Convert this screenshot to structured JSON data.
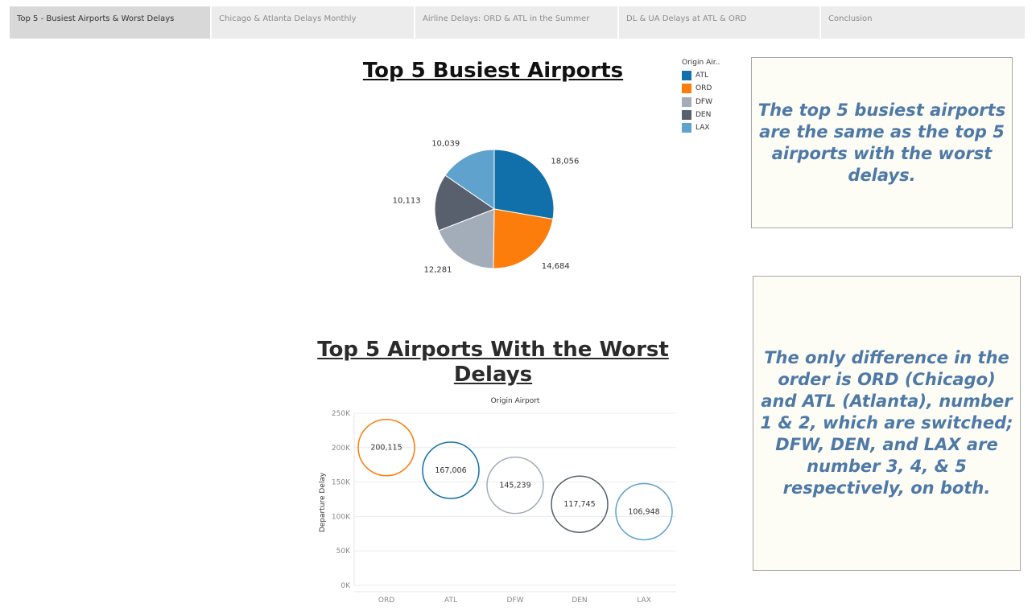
{
  "tabs": [
    {
      "label": "Top 5 - Busiest Airports & Worst Delays",
      "active": true
    },
    {
      "label": "Chicago & Atlanta Delays Monthly",
      "active": false
    },
    {
      "label": "Airline Delays: ORD & ATL in the Summer",
      "active": false
    },
    {
      "label": "DL & UA Delays at ATL & ORD",
      "active": false
    },
    {
      "label": "Conclusion",
      "active": false
    }
  ],
  "notes": {
    "note1": "The top 5 busiest airports are the same as the top 5 airports with the worst delays.",
    "note2": "The only difference in the order is ORD (Chicago) and ATL (Atlanta), number 1 & 2, which are switched; DFW, DEN, and LAX are number 3, 4, & 5 respectively, on both."
  },
  "legend": {
    "title": "Origin Air.."
  },
  "colors": {
    "ATL": "#1170aa",
    "ORD": "#fc7d0b",
    "DFW": "#a3acb9",
    "DEN": "#57606c",
    "LAX": "#5fa2ce"
  },
  "chart_data": [
    {
      "type": "pie",
      "title": "Top 5 Busiest Airports",
      "categories": [
        "ATL",
        "ORD",
        "DFW",
        "DEN",
        "LAX"
      ],
      "values": [
        18056,
        14684,
        12281,
        10113,
        10039
      ],
      "labels": [
        "18,056",
        "14,684",
        "12,281",
        "10,113",
        "10,039"
      ],
      "legend_placement": "top-right"
    },
    {
      "type": "scatter",
      "title": "Top 5 Airports With the Worst Delays",
      "xlabel": "Origin Airport",
      "ylabel": "Departure Delay",
      "categories": [
        "ORD",
        "ATL",
        "DFW",
        "DEN",
        "LAX"
      ],
      "values": [
        200115,
        167006,
        145239,
        117745,
        106948
      ],
      "labels": [
        "200,115",
        "167,006",
        "145,239",
        "117,745",
        "106,948"
      ],
      "ylim": [
        0,
        250000
      ],
      "yticks": [
        0,
        50000,
        100000,
        150000,
        200000,
        250000
      ],
      "ytick_labels": [
        "0K",
        "50K",
        "100K",
        "150K",
        "200K",
        "250K"
      ],
      "grid": true
    }
  ]
}
